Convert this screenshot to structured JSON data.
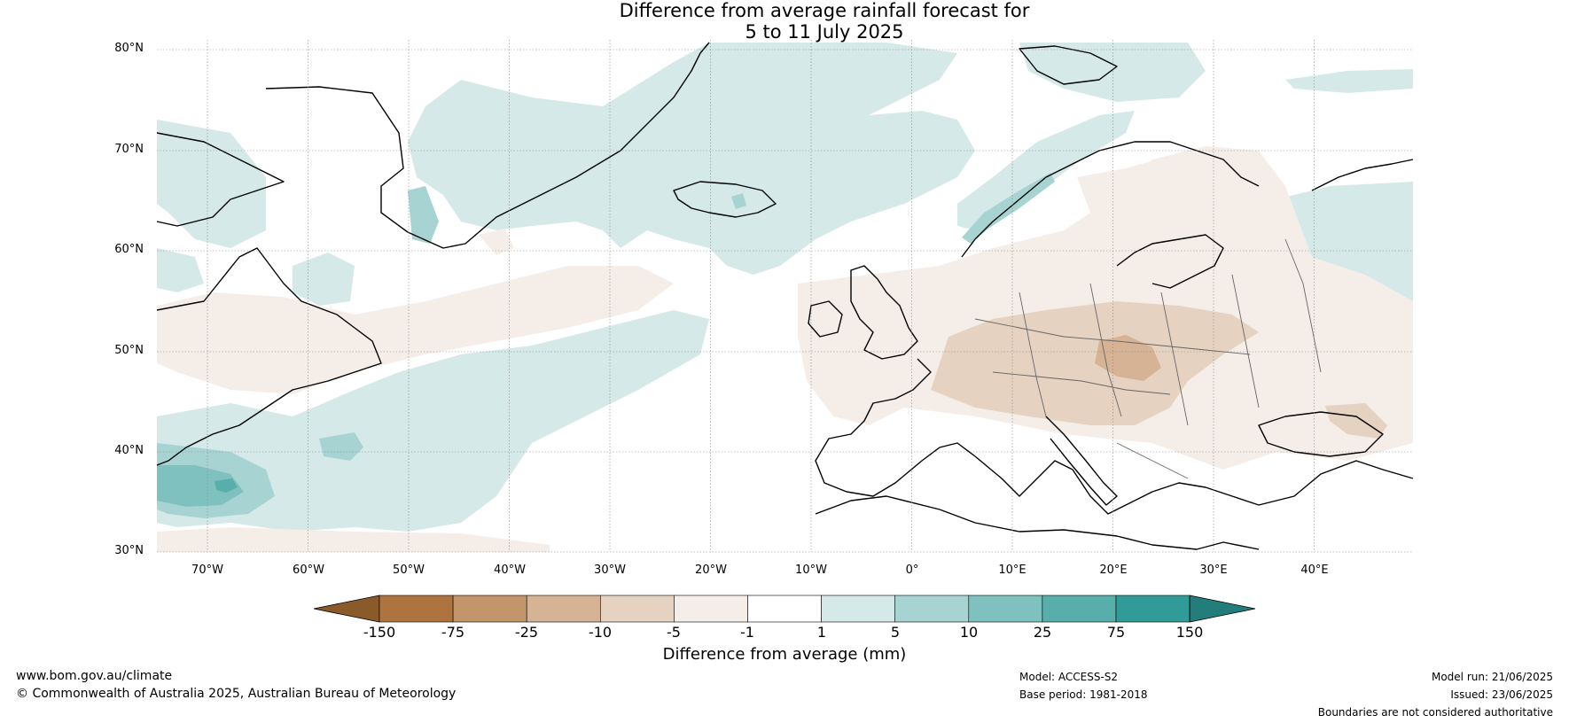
{
  "title": {
    "line1": "Difference from average rainfall forecast for",
    "line2": "5 to 11 July 2025"
  },
  "lat_labels": [
    "80°N",
    "70°N",
    "60°N",
    "50°N",
    "40°N",
    "30°N"
  ],
  "lon_labels": [
    "70°W",
    "60°W",
    "50°W",
    "40°W",
    "30°W",
    "20°W",
    "10°W",
    "0°",
    "10°E",
    "20°E",
    "30°E",
    "40°E"
  ],
  "colorbar": {
    "title": "Difference from average (mm)",
    "ticks": [
      "-150",
      "-75",
      "-25",
      "-10",
      "-5",
      "-1",
      "1",
      "5",
      "10",
      "25",
      "75",
      "150"
    ],
    "colors": [
      "#8b5a2b",
      "#ad7440",
      "#c2956a",
      "#d5b394",
      "#e6d2c0",
      "#f5eee8",
      "#ffffff",
      "#d4e9e8",
      "#a7d4d3",
      "#7fc1bf",
      "#58aeab",
      "#319b98",
      "#237d7a"
    ]
  },
  "footer": {
    "url": "www.bom.gov.au/climate",
    "copyright": "© Commonwealth of Australia 2025, Australian Bureau of Meteorology",
    "model": "Model: ACCESS-S2",
    "base_period": "Base period: 1981-2018",
    "model_run": "Model run: 21/06/2025",
    "issued": "Issued: 23/06/2025",
    "disclaimer": "Boundaries are not considered authoritative"
  }
}
